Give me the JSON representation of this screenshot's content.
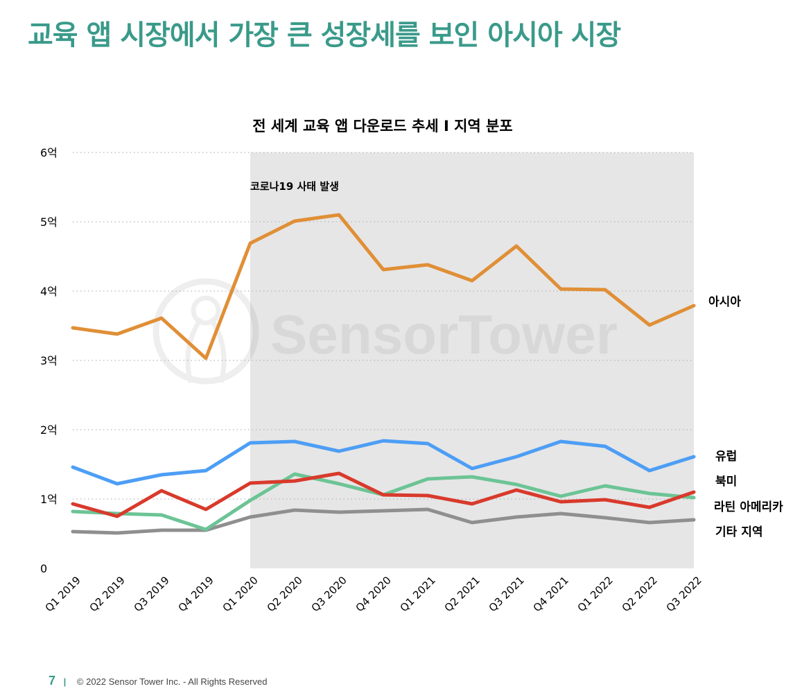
{
  "page_title": "교육 앱 시장에서 가장 큰 성장세를 보인 아시아 시장",
  "footer": {
    "page_number": "7",
    "separator": "|",
    "copyright": "© 2022 Sensor Tower Inc. - All Rights Reserved"
  },
  "watermark": "SensorTower",
  "colors": {
    "title": "#3a9a8a",
    "shade": "#e6e6e6",
    "grid": "#b5b5b5"
  },
  "chart_data": {
    "type": "line",
    "title": "전 세계 교육 앱 다운로드 추세 I 지역 분포",
    "annotation": {
      "text": "코로나19 사태 발생",
      "shade_from": "Q1 2020",
      "shade_to": "Q3 2022"
    },
    "categories": [
      "Q1 2019",
      "Q2 2019",
      "Q3 2019",
      "Q4 2019",
      "Q1 2020",
      "Q2 2020",
      "Q3 2020",
      "Q4 2020",
      "Q1 2021",
      "Q2 2021",
      "Q3 2021",
      "Q4 2021",
      "Q1 2022",
      "Q2 2022",
      "Q3 2022"
    ],
    "ylim": [
      0,
      6
    ],
    "yticks": [
      0,
      1,
      2,
      3,
      4,
      5,
      6
    ],
    "ytick_labels": [
      "0",
      "1억",
      "2억",
      "3억",
      "4억",
      "5억",
      "6억"
    ],
    "grid": "dotted-horizontal",
    "units": "억",
    "series": [
      {
        "name": "아시아",
        "color": "#e08f36",
        "values": [
          3.47,
          3.38,
          3.61,
          3.03,
          4.69,
          5.01,
          5.1,
          4.31,
          4.38,
          4.15,
          4.65,
          4.03,
          4.02,
          3.51,
          3.79
        ]
      },
      {
        "name": "유럽",
        "color": "#4d9ef5",
        "values": [
          1.46,
          1.22,
          1.35,
          1.41,
          1.81,
          1.83,
          1.69,
          1.84,
          1.8,
          1.44,
          1.61,
          1.83,
          1.76,
          1.41,
          1.61
        ]
      },
      {
        "name": "북미",
        "color": "#6cc495",
        "values": [
          0.82,
          0.79,
          0.77,
          0.56,
          0.98,
          1.36,
          1.22,
          1.06,
          1.29,
          1.32,
          1.21,
          1.04,
          1.19,
          1.08,
          1.02
        ]
      },
      {
        "name": "라틴 아메리카",
        "color": "#d83a2c",
        "values": [
          0.93,
          0.75,
          1.12,
          0.85,
          1.23,
          1.26,
          1.37,
          1.06,
          1.05,
          0.93,
          1.13,
          0.96,
          0.99,
          0.88,
          1.1
        ]
      },
      {
        "name": "기타 지역",
        "color": "#8f8f8f",
        "values": [
          0.53,
          0.51,
          0.55,
          0.55,
          0.74,
          0.84,
          0.81,
          0.83,
          0.85,
          0.66,
          0.74,
          0.79,
          0.73,
          0.66,
          0.7
        ]
      }
    ]
  }
}
